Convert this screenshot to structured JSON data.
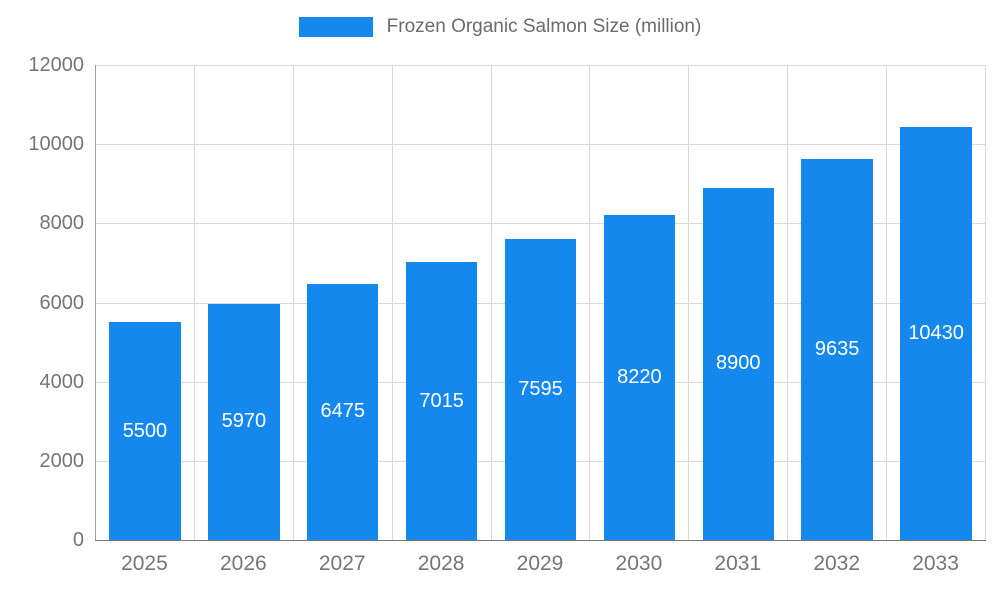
{
  "legend": {
    "label": "Frozen Organic Salmon Size (million)"
  },
  "colors": {
    "bar": "#1588ee",
    "bar_label": "#ffffff",
    "grid": "#d9d9d9",
    "axis": "#757575",
    "tick_text": "#757575",
    "legend_text": "#6b6b6b"
  },
  "chart_data": {
    "type": "bar",
    "title": "Frozen Organic Salmon Size (million)",
    "categories": [
      "2025",
      "2026",
      "2027",
      "2028",
      "2029",
      "2030",
      "2031",
      "2032",
      "2033"
    ],
    "values": [
      5500,
      5970,
      6475,
      7015,
      7595,
      8220,
      8900,
      9635,
      10430
    ],
    "xlabel": "",
    "ylabel": "",
    "ylim": [
      0,
      12000
    ],
    "ytick_step": 2000,
    "ytick_labels": [
      "0",
      "2000",
      "4000",
      "6000",
      "8000",
      "10000",
      "12000"
    ],
    "grid": true,
    "value_labels_inside_bars": true,
    "legend_position": "top"
  }
}
